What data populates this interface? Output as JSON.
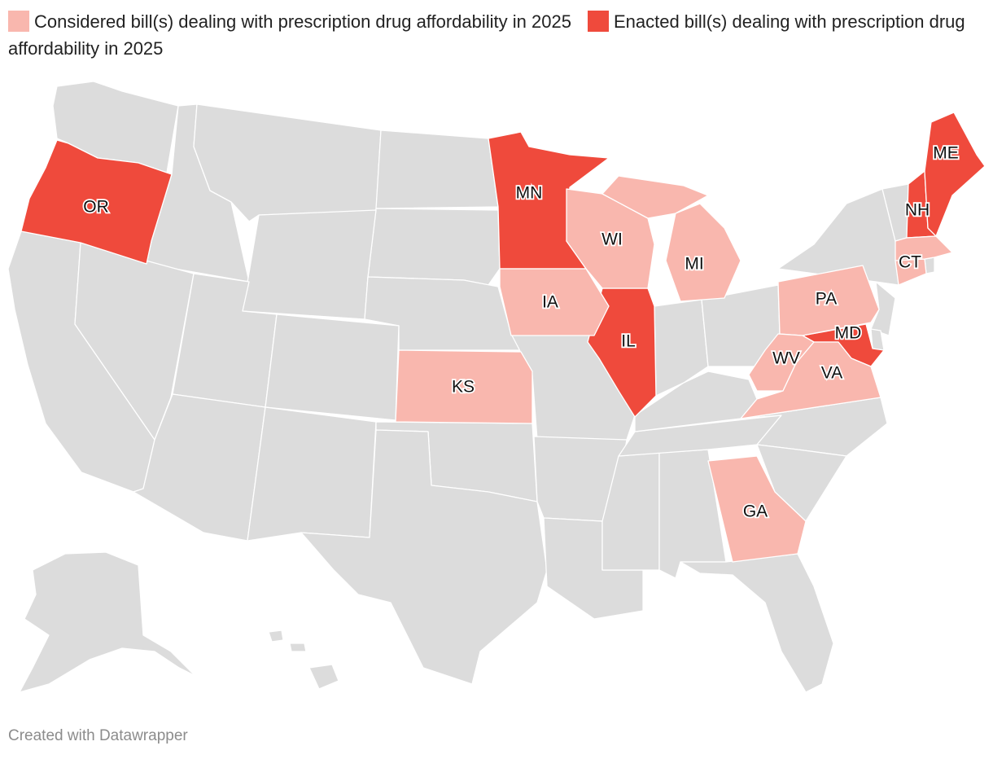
{
  "legend": [
    {
      "label": "Considered bill(s) dealing with prescription drug affordability in 2025",
      "color": "#f9b7ae"
    },
    {
      "label": "Enacted bill(s) dealing with prescription drug affordability in 2025",
      "color": "#ef4a3c"
    }
  ],
  "colors": {
    "considered": "#f9b7ae",
    "enacted": "#ef4a3c",
    "none": "#dcdcdc",
    "border": "#ffffff"
  },
  "states": [
    {
      "code": "OR",
      "status": "enacted"
    },
    {
      "code": "MN",
      "status": "enacted"
    },
    {
      "code": "IL",
      "status": "enacted"
    },
    {
      "code": "MD",
      "status": "enacted"
    },
    {
      "code": "NH",
      "status": "enacted"
    },
    {
      "code": "ME",
      "status": "enacted"
    },
    {
      "code": "WI",
      "status": "considered"
    },
    {
      "code": "MI",
      "status": "considered"
    },
    {
      "code": "IA",
      "status": "considered"
    },
    {
      "code": "KS",
      "status": "considered"
    },
    {
      "code": "PA",
      "status": "considered"
    },
    {
      "code": "WV",
      "status": "considered"
    },
    {
      "code": "VA",
      "status": "considered"
    },
    {
      "code": "GA",
      "status": "considered"
    },
    {
      "code": "CT",
      "status": "considered"
    },
    {
      "code": "MA",
      "status": "considered"
    }
  ],
  "credit": "Created with Datawrapper"
}
